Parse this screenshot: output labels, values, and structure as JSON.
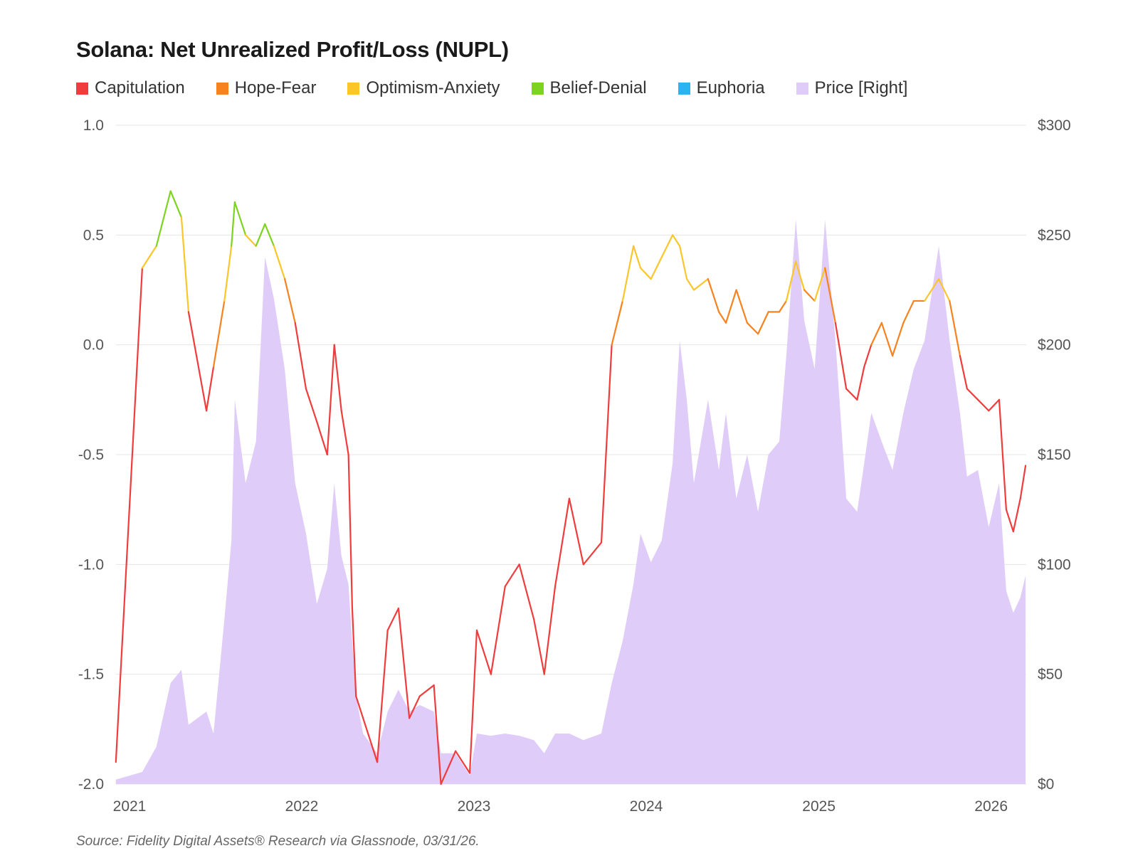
{
  "chart_data": {
    "type": "line",
    "title": "Solana: Net Unrealized Profit/Loss (NUPL)",
    "source": "Source: Fidelity Digital Assets® Research via Glassnode, 03/31/26.",
    "legend_position": "top-left",
    "grid": true,
    "legend": [
      {
        "name": "Capitulation",
        "color": "#f03c3c"
      },
      {
        "name": "Hope-Fear",
        "color": "#f8821e"
      },
      {
        "name": "Optimism-Anxiety",
        "color": "#fbc62a"
      },
      {
        "name": "Belief-Denial",
        "color": "#7ed321"
      },
      {
        "name": "Euphoria",
        "color": "#2bb5f0"
      },
      {
        "name": "Price [Right]",
        "color": "#e0ccf8"
      }
    ],
    "zones": [
      {
        "name": "Capitulation",
        "min": -2,
        "max": 0
      },
      {
        "name": "Hope-Fear",
        "min": 0,
        "max": 0.25
      },
      {
        "name": "Optimism-Anxiety",
        "min": 0.25,
        "max": 0.5
      },
      {
        "name": "Belief-Denial",
        "min": 0.5,
        "max": 0.75
      },
      {
        "name": "Euphoria",
        "min": 0.75,
        "max": 1
      }
    ],
    "y_left": {
      "range": [
        -2.0,
        1.0
      ],
      "ticks": [
        "1.0",
        "0.5",
        "0.0",
        "-0.5",
        "-1.0",
        "-1.5",
        "-2.0"
      ]
    },
    "y_right": {
      "range": [
        0,
        300
      ],
      "ticks": [
        "$300",
        "$250",
        "$200",
        "$150",
        "$100",
        "$50",
        "$0"
      ]
    },
    "x_ticks": [
      "2021",
      "2022",
      "2023",
      "2024",
      "2025",
      "2026"
    ],
    "dates": [
      "2020-12-03",
      "2021-01-28",
      "2021-02-27",
      "2021-03-29",
      "2021-04-21",
      "2021-05-06",
      "2021-06-13",
      "2021-06-28",
      "2021-07-21",
      "2021-08-05",
      "2021-08-12",
      "2021-09-04",
      "2021-09-26",
      "2021-10-15",
      "2021-11-03",
      "2021-11-26",
      "2021-12-18",
      "2022-01-10",
      "2022-02-02",
      "2022-02-24",
      "2022-03-11",
      "2022-03-26",
      "2022-04-10",
      "2022-04-18",
      "2022-04-26",
      "2022-05-11",
      "2022-06-10",
      "2022-07-02",
      "2022-07-25",
      "2022-08-17",
      "2022-09-08",
      "2022-10-08",
      "2022-10-23",
      "2022-11-23",
      "2022-12-23",
      "2023-01-07",
      "2023-02-06",
      "2023-03-08",
      "2023-04-07",
      "2023-05-08",
      "2023-05-30",
      "2023-06-22",
      "2023-07-22",
      "2023-08-21",
      "2023-09-28",
      "2023-10-20",
      "2023-11-12",
      "2023-12-05",
      "2023-12-20",
      "2024-01-11",
      "2024-02-03",
      "2024-02-26",
      "2024-03-12",
      "2024-03-27",
      "2024-04-11",
      "2024-05-11",
      "2024-06-03",
      "2024-06-18",
      "2024-07-10",
      "2024-08-02",
      "2024-08-25",
      "2024-09-16",
      "2024-10-09",
      "2024-10-24",
      "2024-11-13",
      "2024-12-01",
      "2024-12-23",
      "2025-01-14",
      "2025-02-05",
      "2025-02-28",
      "2025-03-23",
      "2025-04-07",
      "2025-04-22",
      "2025-05-14",
      "2025-06-06",
      "2025-06-29",
      "2025-07-21",
      "2025-08-13",
      "2025-09-12",
      "2025-10-05",
      "2025-10-27",
      "2025-11-11",
      "2025-12-04",
      "2025-12-27",
      "2026-01-18",
      "2026-02-02",
      "2026-02-17",
      "2026-03-04",
      "2026-03-15"
    ],
    "series": [
      {
        "name": "NUPL",
        "axis": "left",
        "values": [
          -1.9,
          0.35,
          0.45,
          0.7,
          0.58,
          0.15,
          -0.3,
          -0.1,
          0.2,
          0.45,
          0.65,
          0.5,
          0.45,
          0.55,
          0.45,
          0.3,
          0.1,
          -0.2,
          -0.35,
          -0.5,
          0.0,
          -0.3,
          -0.5,
          -1.2,
          -1.6,
          -1.7,
          -1.9,
          -1.3,
          -1.2,
          -1.7,
          -1.6,
          -1.55,
          -2.0,
          -1.85,
          -1.95,
          -1.3,
          -1.5,
          -1.1,
          -1.0,
          -1.25,
          -1.5,
          -1.1,
          -0.7,
          -1.0,
          -0.9,
          0.0,
          0.2,
          0.45,
          0.35,
          0.3,
          0.4,
          0.5,
          0.45,
          0.3,
          0.25,
          0.3,
          0.15,
          0.1,
          0.25,
          0.1,
          0.05,
          0.15,
          0.15,
          0.2,
          0.38,
          0.25,
          0.2,
          0.35,
          0.1,
          -0.2,
          -0.25,
          -0.1,
          0.0,
          0.1,
          -0.05,
          0.1,
          0.2,
          0.2,
          0.3,
          0.2,
          -0.05,
          -0.2,
          -0.25,
          -0.3,
          -0.25,
          -0.75,
          -0.85,
          -0.7,
          -0.55
        ]
      },
      {
        "name": "Price [Right]",
        "axis": "right",
        "values": [
          2,
          5.5,
          17,
          46,
          52,
          27,
          33,
          23,
          75,
          111,
          175,
          137,
          156,
          240,
          221,
          189,
          137,
          114,
          82,
          98,
          137,
          104,
          91,
          65,
          40,
          23,
          14,
          33,
          43,
          33,
          36,
          33,
          14,
          14,
          4,
          23,
          22,
          23,
          22,
          20,
          14,
          23,
          23,
          20,
          23,
          46,
          65,
          91,
          114,
          101,
          111,
          146,
          202,
          175,
          137,
          175,
          143,
          169,
          130,
          150,
          124,
          150,
          156,
          195,
          257,
          211,
          189,
          257,
          202,
          130,
          124,
          146,
          169,
          156,
          143,
          169,
          189,
          202,
          245,
          202,
          169,
          140,
          143,
          117,
          137,
          88,
          78,
          85,
          95
        ]
      }
    ]
  }
}
